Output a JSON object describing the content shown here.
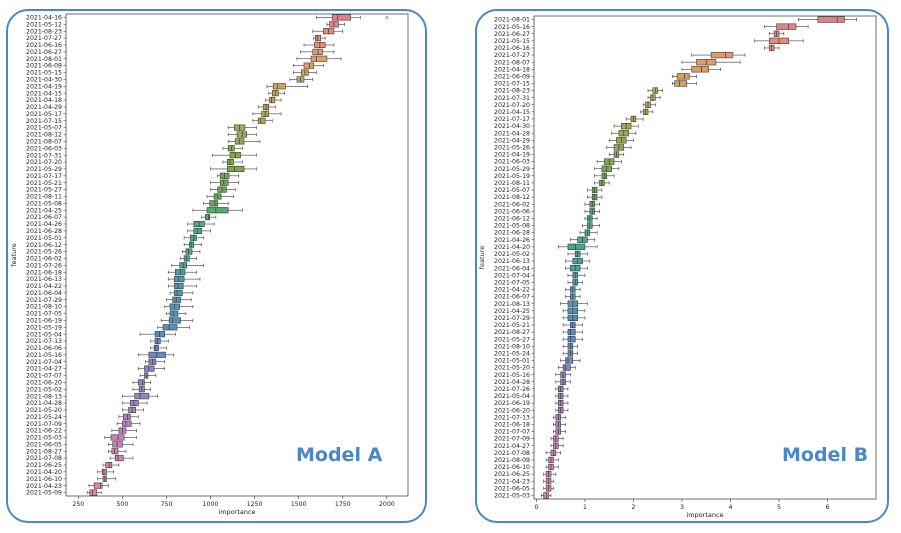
{
  "chart_data": [
    {
      "type": "boxplot",
      "panel_label": "Model A",
      "xlabel": "importance",
      "ylabel": "feature",
      "xlim": [
        180,
        2120
      ],
      "xticks": [
        250,
        500,
        750,
        1000,
        1250,
        1500,
        1750,
        2000
      ],
      "grid": false,
      "orientation": "horizontal",
      "categories": [
        "2021-04-16",
        "2021-05-12",
        "2021-08-23",
        "2021-07-27",
        "2021-06-16",
        "2021-06-27",
        "2021-08-01",
        "2021-06-09",
        "2021-05-15",
        "2021-04-30",
        "2021-04-19",
        "2021-04-15",
        "2021-04-18",
        "2021-04-29",
        "2021-05-17",
        "2021-07-15",
        "2021-05-07",
        "2021-08-12",
        "2021-08-07",
        "2021-06-03",
        "2021-07-31",
        "2021-07-20",
        "2021-05-29",
        "2021-07-17",
        "2021-05-21",
        "2021-05-27",
        "2021-08-11",
        "2021-05-08",
        "2021-04-25",
        "2021-06-07",
        "2021-04-26",
        "2021-06-28",
        "2021-05-01",
        "2021-06-12",
        "2021-05-26",
        "2021-06-02",
        "2021-07-26",
        "2021-06-18",
        "2021-06-13",
        "2021-04-22",
        "2021-06-04",
        "2021-07-29",
        "2021-08-10",
        "2021-07-05",
        "2021-06-19",
        "2021-05-19",
        "2021-05-04",
        "2021-07-13",
        "2021-06-06",
        "2021-05-16",
        "2021-07-04",
        "2021-04-27",
        "2021-07-07",
        "2021-06-20",
        "2021-05-02",
        "2021-08-13",
        "2021-04-28",
        "2021-05-20",
        "2021-05-24",
        "2021-07-09",
        "2021-06-22",
        "2021-05-03",
        "2021-06-05",
        "2021-08-27",
        "2021-07-08",
        "2021-06-25",
        "2021-04-20",
        "2021-06-10",
        "2021-04-23",
        "2021-05-09"
      ],
      "medians": [
        1720,
        1700,
        1670,
        1605,
        1620,
        1610,
        1600,
        1560,
        1535,
        1510,
        1380,
        1370,
        1345,
        1315,
        1310,
        1285,
        1165,
        1180,
        1165,
        1120,
        1140,
        1110,
        1135,
        1080,
        1075,
        1065,
        1040,
        1025,
        1030,
        990,
        935,
        925,
        905,
        890,
        875,
        865,
        845,
        830,
        820,
        815,
        810,
        805,
        795,
        790,
        785,
        765,
        710,
        700,
        690,
        695,
        670,
        650,
        635,
        615,
        610,
        600,
        565,
        555,
        530,
        520,
        500,
        475,
        470,
        455,
        475,
        425,
        395,
        400,
        375,
        330
      ],
      "q1": [
        1690,
        1675,
        1640,
        1595,
        1590,
        1580,
        1570,
        1530,
        1515,
        1490,
        1355,
        1350,
        1335,
        1300,
        1290,
        1270,
        1135,
        1150,
        1140,
        1100,
        1110,
        1095,
        1095,
        1055,
        1055,
        1040,
        1020,
        995,
        980,
        970,
        905,
        905,
        885,
        880,
        860,
        850,
        825,
        800,
        795,
        795,
        795,
        785,
        770,
        770,
        765,
        730,
        685,
        685,
        680,
        650,
        650,
        625,
        625,
        590,
        595,
        570,
        545,
        535,
        505,
        500,
        480,
        435,
        445,
        440,
        460,
        405,
        385,
        390,
        340,
        315
      ],
      "q3": [
        1795,
        1725,
        1700,
        1625,
        1650,
        1635,
        1660,
        1585,
        1555,
        1530,
        1425,
        1385,
        1365,
        1330,
        1330,
        1310,
        1195,
        1205,
        1190,
        1135,
        1170,
        1130,
        1190,
        1105,
        1100,
        1090,
        1060,
        1040,
        1100,
        995,
        965,
        950,
        920,
        905,
        895,
        880,
        865,
        855,
        850,
        845,
        840,
        830,
        825,
        815,
        830,
        810,
        740,
        715,
        705,
        745,
        690,
        680,
        645,
        625,
        625,
        650,
        590,
        575,
        545,
        550,
        520,
        510,
        500,
        475,
        505,
        440,
        410,
        410,
        385,
        355
      ],
      "whisker_lo": [
        1600,
        1660,
        1580,
        1585,
        1530,
        1510,
        1490,
        1470,
        1470,
        1450,
        1320,
        1330,
        1310,
        1270,
        1240,
        1240,
        1100,
        1100,
        1100,
        1070,
        1010,
        1070,
        1000,
        1040,
        1000,
        1000,
        980,
        960,
        900,
        950,
        870,
        870,
        850,
        850,
        840,
        830,
        780,
        760,
        760,
        760,
        770,
        750,
        740,
        750,
        720,
        700,
        600,
        660,
        660,
        590,
        630,
        590,
        600,
        560,
        560,
        500,
        500,
        500,
        480,
        470,
        440,
        400,
        420,
        420,
        430,
        390,
        360,
        360,
        310,
        300
      ],
      "whisker_hi": [
        1850,
        1760,
        1750,
        1650,
        1700,
        1700,
        1740,
        1640,
        1600,
        1580,
        1550,
        1420,
        1400,
        1370,
        1400,
        1350,
        1260,
        1260,
        1280,
        1180,
        1260,
        1180,
        1260,
        1160,
        1160,
        1140,
        1130,
        1100,
        1180,
        1030,
        1020,
        1000,
        960,
        950,
        940,
        920,
        960,
        920,
        940,
        920,
        900,
        890,
        900,
        860,
        900,
        880,
        800,
        760,
        750,
        790,
        740,
        740,
        690,
        660,
        660,
        700,
        640,
        620,
        590,
        600,
        580,
        580,
        560,
        520,
        560,
        480,
        450,
        460,
        420,
        380
      ],
      "outliers": [
        {
          "category": "2021-04-16",
          "value": 2000
        }
      ]
    },
    {
      "type": "boxplot",
      "panel_label": "Model B",
      "xlabel": "importance",
      "ylabel": "feature",
      "xlim": [
        -0.05,
        7.0
      ],
      "xticks": [
        0,
        1,
        2,
        3,
        4,
        5,
        6
      ],
      "grid": false,
      "orientation": "horizontal",
      "categories": [
        "2021-08-01",
        "2021-05-16",
        "2021-06-27",
        "2021-05-15",
        "2021-06-16",
        "2021-07-27",
        "2021-08-07",
        "2021-04-18",
        "2021-06-09",
        "2021-07-15",
        "2021-08-23",
        "2021-07-31",
        "2021-07-20",
        "2021-04-15",
        "2021-07-17",
        "2021-04-30",
        "2021-04-28",
        "2021-04-29",
        "2021-05-26",
        "2021-04-19",
        "2021-06-03",
        "2021-05-29",
        "2021-05-19",
        "2021-08-11",
        "2021-05-07",
        "2021-08-12",
        "2021-06-02",
        "2021-06-06",
        "2021-06-12",
        "2021-05-08",
        "2021-06-28",
        "2021-04-26",
        "2021-04-20",
        "2021-05-02",
        "2021-06-13",
        "2021-06-04",
        "2021-07-04",
        "2021-07-05",
        "2021-04-22",
        "2021-06-07",
        "2021-08-13",
        "2021-04-25",
        "2021-07-29",
        "2021-05-21",
        "2021-08-27",
        "2021-05-27",
        "2021-08-10",
        "2021-05-24",
        "2021-05-01",
        "2021-05-20",
        "2021-05-16",
        "2021-04-28",
        "2021-07-26",
        "2021-05-04",
        "2021-06-19",
        "2021-06-20",
        "2021-07-13",
        "2021-06-18",
        "2021-07-07",
        "2021-07-09",
        "2021-04-27",
        "2021-07-08",
        "2021-08-09",
        "2021-06-10",
        "2021-06-25",
        "2021-04-23",
        "2021-06-05",
        "2021-05-03"
      ],
      "medians": [
        6.2,
        5.2,
        4.95,
        5.0,
        4.85,
        3.9,
        3.5,
        3.4,
        3.05,
        2.95,
        2.45,
        2.4,
        2.3,
        2.25,
        2.0,
        1.85,
        1.8,
        1.75,
        1.7,
        1.65,
        1.5,
        1.45,
        1.4,
        1.35,
        1.2,
        1.2,
        1.15,
        1.15,
        1.1,
        1.1,
        1.05,
        0.95,
        0.8,
        0.85,
        0.85,
        0.8,
        0.8,
        0.8,
        0.75,
        0.75,
        0.75,
        0.75,
        0.75,
        0.75,
        0.7,
        0.7,
        0.7,
        0.7,
        0.65,
        0.6,
        0.55,
        0.55,
        0.5,
        0.5,
        0.5,
        0.5,
        0.45,
        0.45,
        0.45,
        0.4,
        0.4,
        0.35,
        0.3,
        0.3,
        0.25,
        0.25,
        0.25,
        0.2
      ],
      "q1": [
        5.8,
        4.95,
        4.9,
        4.8,
        4.8,
        3.6,
        3.3,
        3.2,
        2.9,
        2.85,
        2.4,
        2.35,
        2.25,
        2.2,
        1.95,
        1.75,
        1.7,
        1.65,
        1.6,
        1.6,
        1.4,
        1.35,
        1.35,
        1.3,
        1.15,
        1.15,
        1.1,
        1.1,
        1.05,
        1.05,
        1.0,
        0.85,
        0.65,
        0.8,
        0.75,
        0.7,
        0.75,
        0.75,
        0.7,
        0.7,
        0.65,
        0.65,
        0.65,
        0.7,
        0.65,
        0.65,
        0.65,
        0.65,
        0.6,
        0.55,
        0.5,
        0.5,
        0.45,
        0.45,
        0.45,
        0.45,
        0.4,
        0.4,
        0.4,
        0.35,
        0.35,
        0.3,
        0.25,
        0.25,
        0.2,
        0.2,
        0.2,
        0.15
      ],
      "q3": [
        6.35,
        5.35,
        5.0,
        5.2,
        4.9,
        4.05,
        3.7,
        3.55,
        3.15,
        3.1,
        2.5,
        2.45,
        2.35,
        2.3,
        2.05,
        1.95,
        1.9,
        1.85,
        1.8,
        1.7,
        1.6,
        1.55,
        1.45,
        1.4,
        1.25,
        1.25,
        1.2,
        1.2,
        1.15,
        1.15,
        1.1,
        1.05,
        1.0,
        0.9,
        0.95,
        0.9,
        0.85,
        0.85,
        0.8,
        0.8,
        0.85,
        0.85,
        0.85,
        0.8,
        0.8,
        0.8,
        0.75,
        0.75,
        0.75,
        0.7,
        0.6,
        0.6,
        0.55,
        0.55,
        0.55,
        0.55,
        0.5,
        0.5,
        0.5,
        0.45,
        0.45,
        0.4,
        0.35,
        0.35,
        0.3,
        0.3,
        0.3,
        0.25
      ],
      "whisker_lo": [
        5.4,
        4.7,
        4.8,
        4.5,
        4.7,
        3.2,
        3.0,
        3.0,
        2.8,
        2.8,
        2.3,
        2.3,
        2.2,
        2.15,
        1.85,
        1.6,
        1.55,
        1.5,
        1.45,
        1.5,
        1.25,
        1.2,
        1.2,
        1.2,
        1.05,
        1.05,
        1.0,
        1.0,
        1.0,
        0.95,
        0.9,
        0.7,
        0.45,
        0.65,
        0.6,
        0.6,
        0.65,
        0.65,
        0.6,
        0.6,
        0.5,
        0.55,
        0.55,
        0.55,
        0.55,
        0.55,
        0.55,
        0.55,
        0.5,
        0.45,
        0.4,
        0.4,
        0.4,
        0.4,
        0.4,
        0.4,
        0.35,
        0.35,
        0.35,
        0.3,
        0.3,
        0.2,
        0.2,
        0.2,
        0.15,
        0.15,
        0.15,
        0.1
      ],
      "whisker_hi": [
        6.6,
        5.6,
        5.1,
        5.5,
        5.0,
        4.3,
        4.2,
        3.8,
        3.3,
        3.3,
        2.6,
        2.55,
        2.45,
        2.4,
        2.2,
        2.1,
        2.05,
        2.0,
        1.95,
        1.8,
        1.75,
        1.7,
        1.6,
        1.5,
        1.35,
        1.35,
        1.3,
        1.3,
        1.25,
        1.3,
        1.25,
        1.2,
        1.25,
        1.05,
        1.1,
        1.05,
        1.0,
        0.95,
        0.9,
        0.9,
        1.05,
        1.0,
        1.0,
        0.95,
        0.95,
        0.95,
        0.85,
        0.85,
        0.9,
        0.8,
        0.7,
        0.7,
        0.65,
        0.65,
        0.65,
        0.65,
        0.6,
        0.6,
        0.6,
        0.55,
        0.55,
        0.5,
        0.45,
        0.45,
        0.4,
        0.35,
        0.35,
        0.3
      ],
      "outliers": []
    }
  ],
  "colors": {
    "panel_border": "#4a86c8",
    "label_color": "#4a86c8",
    "palette": [
      "#e27d8a",
      "#e6986b",
      "#c8a45a",
      "#a6a84f",
      "#7fa848",
      "#5aa860",
      "#4aa88c",
      "#48a0a8",
      "#4c94bd",
      "#6688c6",
      "#8e86c9",
      "#b27fc2",
      "#d77fba",
      "#e184a6"
    ]
  }
}
